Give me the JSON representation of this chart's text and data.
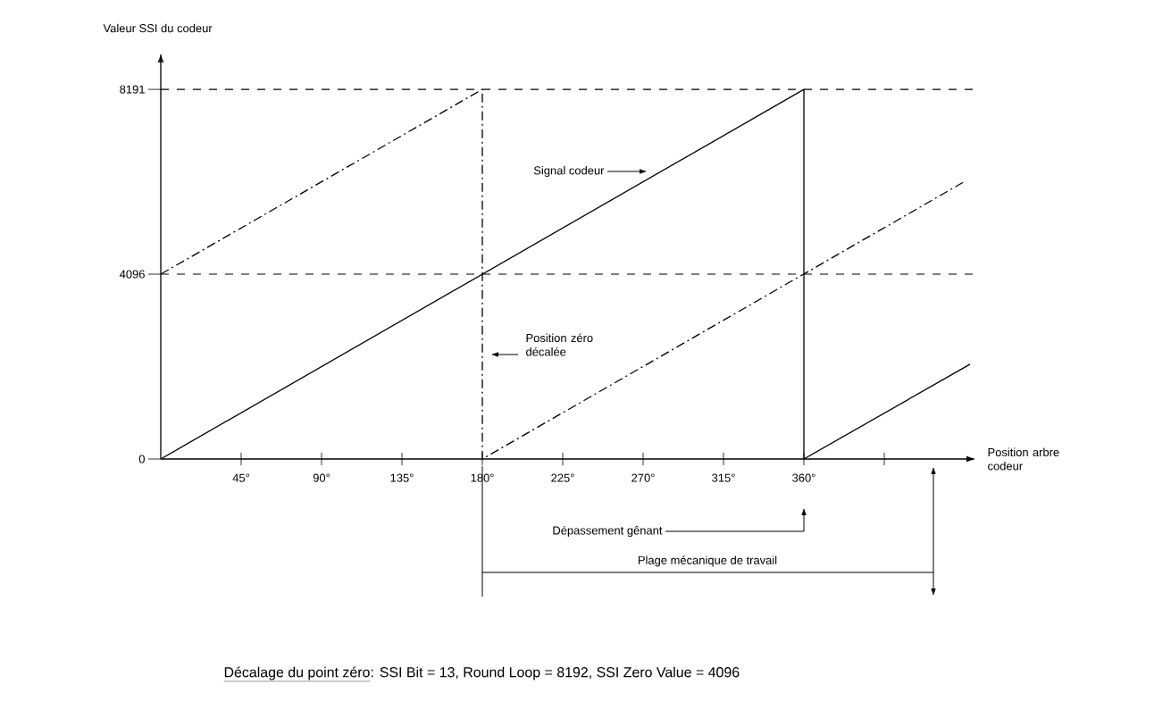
{
  "chart_data": {
    "type": "line",
    "xlabel": "Position arbre codeur",
    "ylabel": "Valeur SSI du codeur",
    "xlim": [
      0,
      455
    ],
    "ylim": [
      0,
      8950
    ],
    "xticks": [
      {
        "value": 45,
        "label": "45°"
      },
      {
        "value": 90,
        "label": "90°"
      },
      {
        "value": 135,
        "label": "135°"
      },
      {
        "value": 180,
        "label": "180°"
      },
      {
        "value": 225,
        "label": "225°"
      },
      {
        "value": 270,
        "label": "270°"
      },
      {
        "value": 315,
        "label": "315°"
      },
      {
        "value": 360,
        "label": "360°"
      },
      {
        "value": 405,
        "label": null
      }
    ],
    "yticks": [
      0,
      4096,
      8191
    ],
    "series": [
      {
        "color": "#000000",
        "line_style": "solid",
        "x": [
          0,
          360,
          360,
          453
        ],
        "values": [
          0,
          8191,
          0,
          2100
        ]
      },
      {
        "color": "#000000",
        "line_style": "dashdot",
        "x": [
          0,
          180,
          180,
          180,
          450
        ],
        "values": [
          4096,
          8191,
          8191,
          0,
          6150
        ]
      }
    ],
    "ref_lines": [
      {
        "axis": "y",
        "value": 8191,
        "line_style": "dashed"
      },
      {
        "axis": "y",
        "value": 4096,
        "line_style": "dashed"
      }
    ],
    "annotations": [
      "Signal codeur",
      "Position zéro décalée",
      "Dépassement gênant",
      "Plage mécanique de travail",
      "Décalage du point zéro",
      ": SSI Bit = 13,  Round Loop = 8192,  SSI Zero Value = 4096"
    ]
  }
}
